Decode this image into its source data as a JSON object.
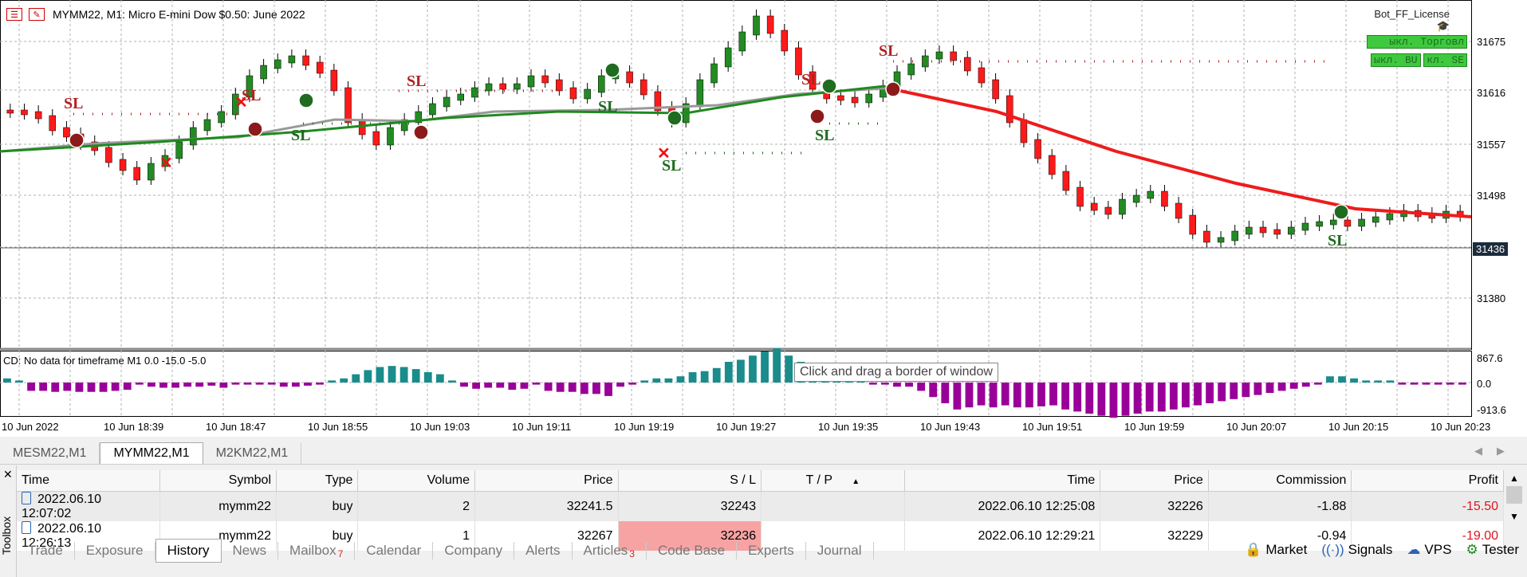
{
  "chart": {
    "title": "MYMM22, M1:  Micro E-mini Dow $0.50: June 2022",
    "price_labels": [
      "31675",
      "31616",
      "31557",
      "31498",
      "31380"
    ],
    "current_price": "31436",
    "indicator_label": "CD: No data for timeframe M1 0.0 -15.0 -5.0",
    "indicator_scale": [
      "867.6",
      "0.0",
      "-913.6"
    ],
    "time_labels": [
      "10 Jun 2022",
      "10 Jun 18:39",
      "10 Jun 18:47",
      "10 Jun 18:55",
      "10 Jun 19:03",
      "10 Jun 19:11",
      "10 Jun 19:19",
      "10 Jun 19:27",
      "10 Jun 19:35",
      "10 Jun 19:43",
      "10 Jun 19:51",
      "10 Jun 19:59",
      "10 Jun 20:07",
      "10 Jun 20:15",
      "10 Jun 20:23"
    ],
    "sl_label": "SL",
    "tooltip": "Click and drag a border of window",
    "bot_title": "Bot_FF_License",
    "bot_buttons": [
      "ыкл. Торговл",
      "ыкл. BU",
      "кл. SE"
    ],
    "colors": {
      "bull": "#228b22",
      "bear": "#ff1a1a",
      "ma_gray": "#999999",
      "ma_green": "#1f8a1f",
      "ma_red": "#ee1c1c",
      "osc_teal": "#1a8c8c",
      "osc_purple": "#990099"
    }
  },
  "symbol_tabs": [
    "MESM22,M1",
    "MYMM22,M1",
    "M2KM22,M1"
  ],
  "history": {
    "columns": [
      "Time",
      "Symbol",
      "Type",
      "Volume",
      "Price",
      "S / L",
      "T / P",
      "Time",
      "Price",
      "Commission",
      "Profit"
    ],
    "rows": [
      [
        "2022.06.10 12:07:02",
        "mymm22",
        "buy",
        "2",
        "32241.5",
        "32243",
        "",
        "2022.06.10 12:25:08",
        "32226",
        "-1.88",
        "-15.50"
      ],
      [
        "2022.06.10 12:26:13",
        "mymm22",
        "buy",
        "1",
        "32267",
        "32236",
        "",
        "2022.06.10 12:29:21",
        "32229",
        "-0.94",
        "-19.00"
      ]
    ]
  },
  "toolbox_label": "Toolbox",
  "bottom_tabs": [
    {
      "label": "Trade",
      "badge": ""
    },
    {
      "label": "Exposure",
      "badge": ""
    },
    {
      "label": "History",
      "badge": ""
    },
    {
      "label": "News",
      "badge": ""
    },
    {
      "label": "Mailbox",
      "badge": "7"
    },
    {
      "label": "Calendar",
      "badge": ""
    },
    {
      "label": "Company",
      "badge": ""
    },
    {
      "label": "Alerts",
      "badge": ""
    },
    {
      "label": "Articles",
      "badge": "3"
    },
    {
      "label": "Code Base",
      "badge": ""
    },
    {
      "label": "Experts",
      "badge": ""
    },
    {
      "label": "Journal",
      "badge": ""
    }
  ],
  "status_right": [
    "Market",
    "Signals",
    "VPS",
    "Tester"
  ]
}
